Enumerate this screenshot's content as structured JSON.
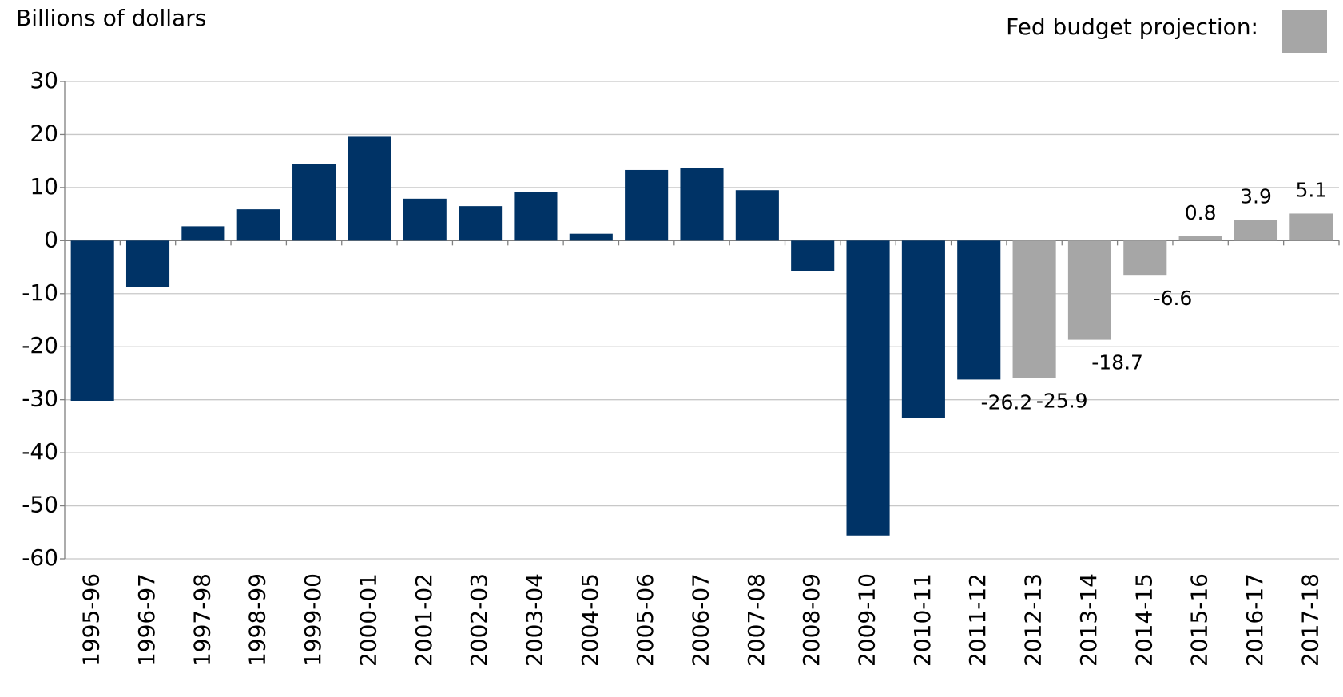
{
  "chart_data": {
    "type": "bar",
    "y_axis_label": "Billions of dollars",
    "legend": {
      "label": "Fed budget projection:",
      "color": "#a6a6a6"
    },
    "categories": [
      "1995-96",
      "1996-97",
      "1997-98",
      "1998-99",
      "1999-00",
      "2000-01",
      "2001-02",
      "2002-03",
      "2003-04",
      "2004-05",
      "2005-06",
      "2006-07",
      "2007-08",
      "2008-09",
      "2009-10",
      "2010-11",
      "2011-12",
      "2012-13",
      "2013-14",
      "2014-15",
      "2015-16",
      "2016-17",
      "2017-18"
    ],
    "values": [
      -30.2,
      -8.8,
      2.7,
      5.9,
      14.4,
      19.7,
      7.9,
      6.5,
      9.2,
      1.3,
      13.3,
      13.6,
      9.5,
      -5.7,
      -55.6,
      -33.5,
      -26.2,
      -25.9,
      -18.7,
      -6.6,
      0.8,
      3.9,
      5.1
    ],
    "value_labels": [
      null,
      null,
      null,
      null,
      null,
      null,
      null,
      null,
      null,
      null,
      null,
      null,
      null,
      null,
      null,
      null,
      "-26.2",
      "-25.9",
      "-18.7",
      "-6.6",
      "0.8",
      "3.9",
      "5.1"
    ],
    "colors": [
      "#003366",
      "#003366",
      "#003366",
      "#003366",
      "#003366",
      "#003366",
      "#003366",
      "#003366",
      "#003366",
      "#003366",
      "#003366",
      "#003366",
      "#003366",
      "#003366",
      "#003366",
      "#003366",
      "#003366",
      "#a6a6a6",
      "#a6a6a6",
      "#a6a6a6",
      "#a6a6a6",
      "#a6a6a6",
      "#a6a6a6"
    ],
    "ylim": [
      -60,
      30
    ],
    "yticks": [
      -60,
      -50,
      -40,
      -30,
      -20,
      -10,
      0,
      10,
      20,
      30
    ],
    "grid": true
  }
}
